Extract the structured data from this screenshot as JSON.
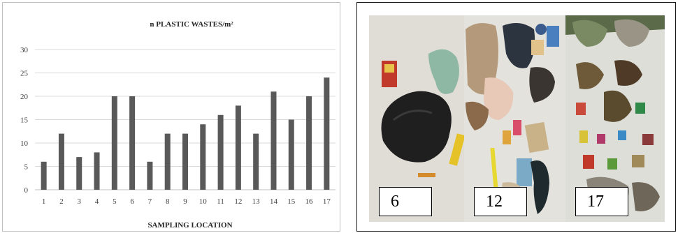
{
  "chart_data": {
    "type": "bar",
    "title": "n PLASTIC WASTES/m²",
    "xlabel": "SAMPLING LOCATION",
    "ylabel": "",
    "categories": [
      "1",
      "2",
      "3",
      "4",
      "5",
      "6",
      "7",
      "8",
      "9",
      "10",
      "11",
      "12",
      "13",
      "14",
      "15",
      "16",
      "17"
    ],
    "values": [
      6,
      12,
      7,
      8,
      20,
      20,
      6,
      12,
      12,
      14,
      16,
      18,
      12,
      21,
      15,
      20,
      24
    ],
    "ylim": [
      0,
      30
    ],
    "yticks": [
      0,
      5,
      10,
      15,
      20,
      25,
      30
    ],
    "grid": true,
    "bar_color": "#595959"
  },
  "photos": [
    {
      "label": "6"
    },
    {
      "label": "12"
    },
    {
      "label": "17"
    }
  ]
}
